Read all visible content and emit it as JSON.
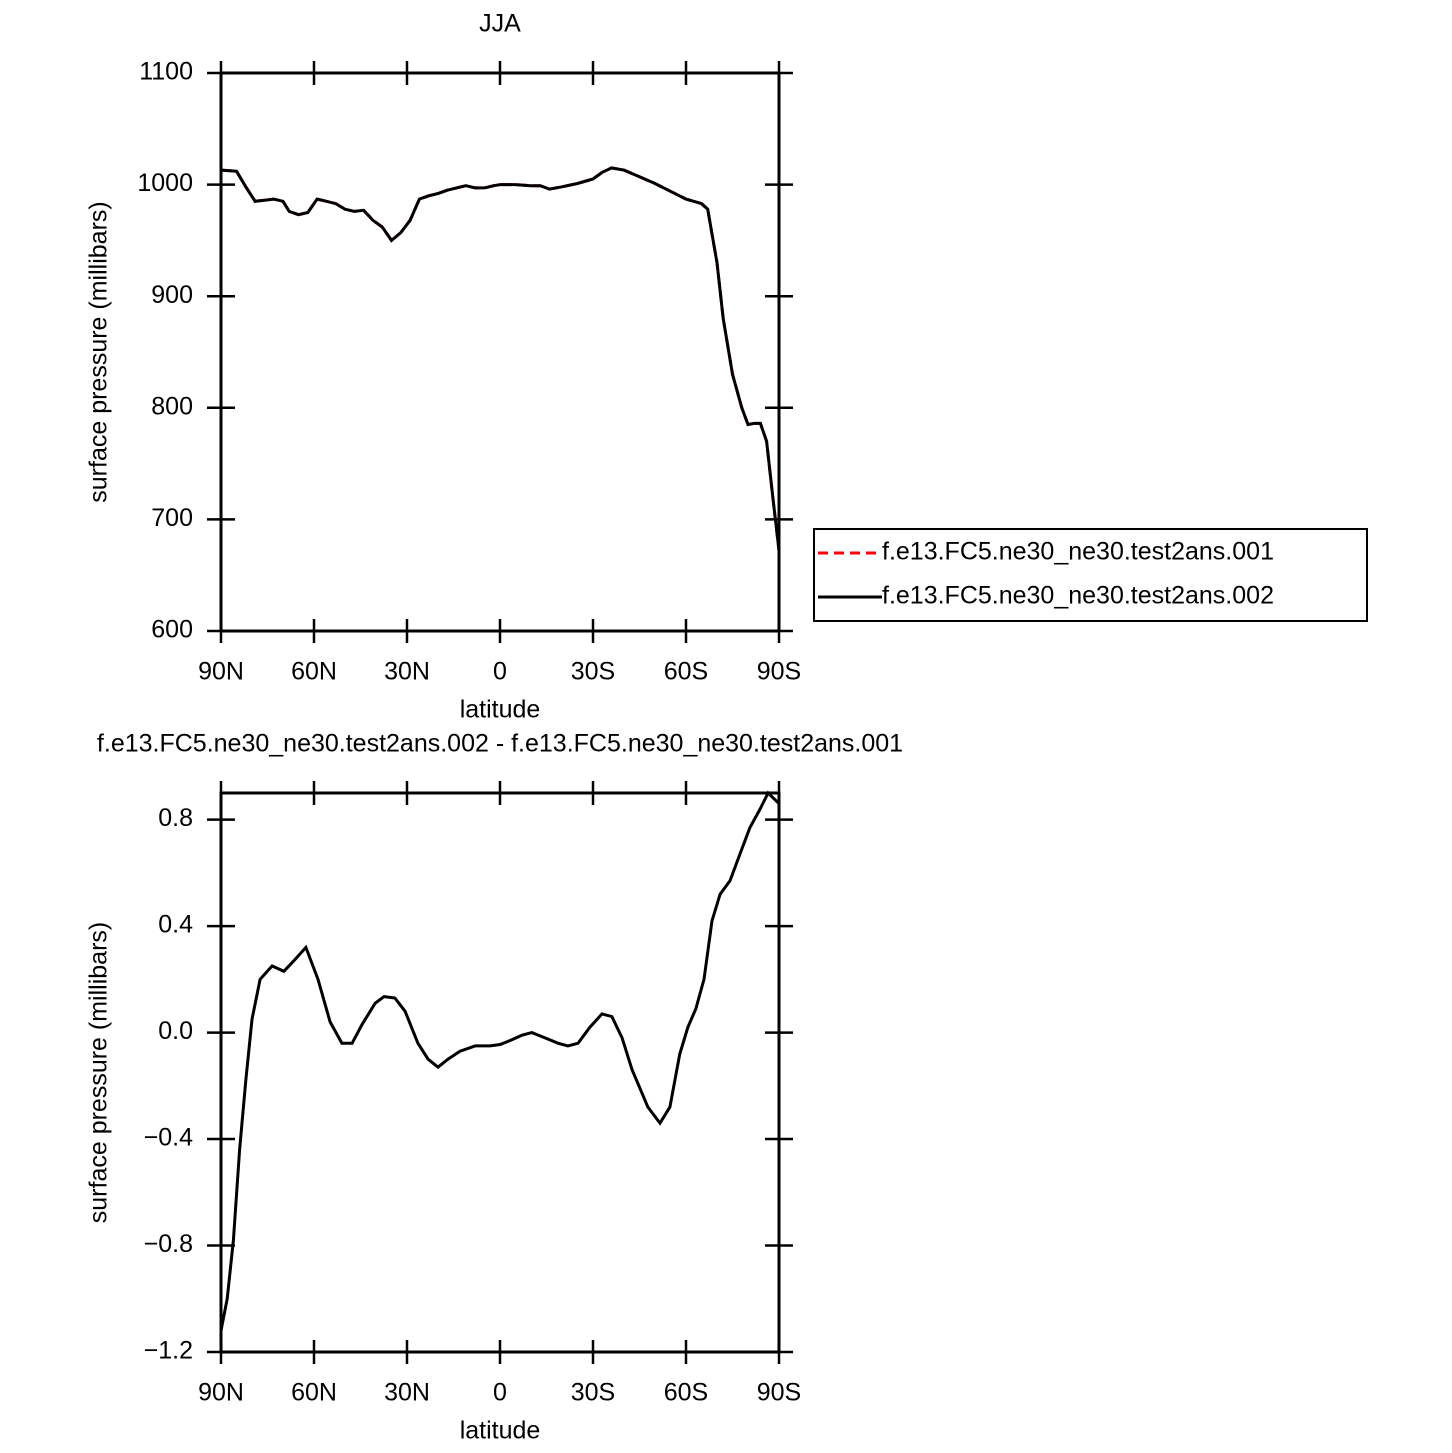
{
  "chart_data": [
    {
      "type": "line",
      "title": "JJA",
      "xlabel": "latitude",
      "ylabel": "surface pressure (millibars)",
      "xlim": [
        90,
        -90
      ],
      "ylim": [
        600,
        1100
      ],
      "xticks": [
        {
          "value": 90,
          "label": "90N"
        },
        {
          "value": 60,
          "label": "60N"
        },
        {
          "value": 30,
          "label": "30N"
        },
        0,
        {
          "value": -30,
          "label": "30S"
        },
        {
          "value": -60,
          "label": "60S"
        },
        {
          "value": -90,
          "label": "90S"
        }
      ],
      "yticks": [
        600,
        700,
        800,
        900,
        1000,
        1100
      ],
      "legend": "right",
      "x": [
        90,
        85,
        82,
        79,
        76,
        73,
        70,
        68,
        65,
        62,
        59,
        56,
        53,
        50,
        47,
        44,
        41,
        38,
        35,
        32,
        29,
        26,
        23,
        20,
        17,
        14,
        11,
        8,
        5,
        2,
        0,
        -5,
        -10,
        -13,
        -16,
        -20,
        -25,
        -30,
        -33,
        -36,
        -40,
        -45,
        -50,
        -55,
        -60,
        -65,
        -67,
        -70,
        -72,
        -75,
        -78,
        -80,
        -82,
        -84,
        -86,
        -88,
        -90
      ],
      "series": [
        {
          "name": "f.e13.FC5.ne30_ne30.test2ans.001",
          "color": "#ff0000",
          "linestyle": "dashed",
          "values": [
            1013,
            1012,
            998,
            985,
            986,
            987,
            985,
            976,
            973,
            975,
            987,
            985,
            983,
            978,
            976,
            977,
            968,
            962,
            950,
            957,
            968,
            987,
            990,
            992,
            995,
            997,
            999,
            997,
            997,
            999,
            1000,
            1000,
            999,
            999,
            996,
            998,
            1001,
            1005,
            1011,
            1015,
            1013,
            1007,
            1001,
            994,
            987,
            983,
            978,
            930,
            880,
            830,
            800,
            785,
            786,
            786,
            770,
            720,
            672
          ]
        },
        {
          "name": "f.e13.FC5.ne30_ne30.test2ans.002",
          "color": "#000000",
          "linestyle": "solid",
          "values": [
            1013,
            1012,
            998,
            985,
            986,
            987,
            985,
            976,
            973,
            975,
            987,
            985,
            983,
            978,
            976,
            977,
            968,
            962,
            950,
            957,
            968,
            987,
            990,
            992,
            995,
            997,
            999,
            997,
            997,
            999,
            1000,
            1000,
            999,
            999,
            996,
            998,
            1001,
            1005,
            1011,
            1015,
            1013,
            1007,
            1001,
            994,
            987,
            983,
            978,
            930,
            880,
            830,
            800,
            785,
            786,
            786,
            770,
            720,
            672
          ]
        }
      ]
    },
    {
      "type": "line",
      "title": "f.e13.FC5.ne30_ne30.test2ans.002 - f.e13.FC5.ne30_ne30.test2ans.001",
      "xlabel": "latitude",
      "ylabel": "surface pressure (millibars)",
      "xlim": [
        90,
        -90
      ],
      "ylim": [
        -1.2,
        0.9
      ],
      "xticks": [
        {
          "value": 90,
          "label": "90N"
        },
        {
          "value": 60,
          "label": "60N"
        },
        {
          "value": 30,
          "label": "30N"
        },
        0,
        {
          "value": -30,
          "label": "30S"
        },
        {
          "value": -60,
          "label": "60S"
        },
        {
          "value": -90,
          "label": "90S"
        }
      ],
      "yticks": [
        {
          "value": -1.2,
          "label": "−1.2"
        },
        {
          "value": -0.8,
          "label": "−0.8"
        },
        {
          "value": -0.4,
          "label": "−0.4"
        },
        {
          "value": 0,
          "label": "0.0"
        },
        0.4,
        0.8
      ],
      "x": [
        90,
        88,
        86,
        84,
        82,
        80,
        77.4,
        73.5,
        69.7,
        66.5,
        62.6,
        58.7,
        54.8,
        51,
        47.7,
        44.5,
        40.3,
        37.4,
        33.9,
        30.6,
        26.5,
        23.2,
        20,
        16.8,
        12.9,
        8,
        3.2,
        0,
        -3.2,
        -7.1,
        -10.3,
        -14.5,
        -18.7,
        -21.9,
        -25.2,
        -29,
        -32.9,
        -36.1,
        -39.4,
        -42.6,
        -47.7,
        -51.6,
        -54.8,
        -58,
        -60.6,
        -63.2,
        -65.8,
        -68.4,
        -71,
        -74.2,
        -77.4,
        -80.6,
        -83.9,
        -86.5,
        -90
      ],
      "series": [
        {
          "color": "#000000",
          "linestyle": "solid",
          "values": [
            -1.12,
            -1.0,
            -0.78,
            -0.44,
            -0.18,
            0.05,
            0.2,
            0.25,
            0.23,
            0.27,
            0.32,
            0.2,
            0.04,
            -0.04,
            -0.04,
            0.03,
            0.11,
            0.135,
            0.13,
            0.08,
            -0.04,
            -0.1,
            -0.13,
            -0.1,
            -0.07,
            -0.05,
            -0.05,
            -0.045,
            -0.03,
            -0.01,
            0.0,
            -0.02,
            -0.04,
            -0.05,
            -0.04,
            0.02,
            0.07,
            0.06,
            -0.02,
            -0.14,
            -0.28,
            -0.34,
            -0.28,
            -0.08,
            0.02,
            0.09,
            0.2,
            0.42,
            0.52,
            0.57,
            0.67,
            0.77,
            0.84,
            0.9,
            0.86
          ]
        }
      ]
    }
  ]
}
